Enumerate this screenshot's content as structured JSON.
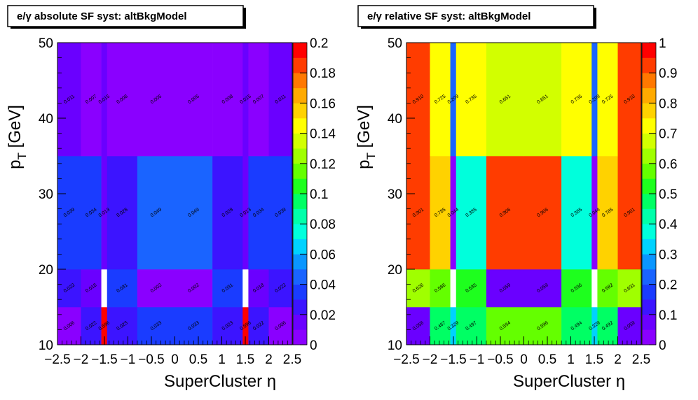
{
  "chart_data": [
    {
      "type": "heatmap",
      "title": "e/γ absolute SF syst: altBkgModel",
      "xlabel": "SuperCluster  η",
      "ylabel": "p_T [GeV]",
      "ylabel_main": "p",
      "ylabel_sub": "T",
      "ylabel_unit": " [GeV]",
      "xlim": [
        -2.5,
        2.5
      ],
      "ylim": [
        10,
        50
      ],
      "zlim": [
        0,
        0.2
      ],
      "x_edges": [
        -2.5,
        -2.0,
        -1.566,
        -1.444,
        -0.8,
        0.0,
        0.8,
        1.444,
        1.566,
        2.0,
        2.5
      ],
      "y_edges": [
        10,
        15,
        20,
        35,
        50
      ],
      "x_ticks": [
        "−2.5",
        "−2",
        "−1.5",
        "−1",
        "−0.5",
        "0",
        "0.5",
        "1",
        "1.5",
        "2",
        "2.5"
      ],
      "x_tick_values": [
        -2.5,
        -2,
        -1.5,
        -1,
        -0.5,
        0,
        0.5,
        1,
        1.5,
        2,
        2.5
      ],
      "y_ticks": [
        "10",
        "20",
        "30",
        "40",
        "50"
      ],
      "y_tick_values": [
        10,
        20,
        30,
        40,
        50
      ],
      "z_ticks": [
        "0",
        "0.02",
        "0.04",
        "0.06",
        "0.08",
        "0.1",
        "0.12",
        "0.14",
        "0.16",
        "0.18",
        "0.2"
      ],
      "values": [
        [
          0.006,
          0.022,
          0.596,
          0.023,
          0.033,
          0.033,
          0.023,
          0.596,
          0.022,
          0.006
        ],
        [
          0.022,
          0.018,
          null,
          0.031,
          0.002,
          0.002,
          0.031,
          null,
          0.018,
          0.022
        ],
        [
          0.039,
          0.034,
          0.013,
          0.028,
          0.049,
          0.049,
          0.028,
          0.013,
          0.034,
          0.039
        ],
        [
          0.011,
          0.007,
          0.015,
          0.008,
          0.005,
          0.005,
          0.008,
          0.015,
          0.007,
          0.011
        ]
      ],
      "labels": [
        [
          "0.006",
          "0.022",
          "0.596",
          "0.023",
          "0.033",
          "0.033",
          "0.023",
          "0.596",
          "0.022",
          "0.006"
        ],
        [
          "0.022",
          "0.018",
          "",
          "0.031",
          "0.002",
          "0.002",
          "0.031",
          "",
          "0.018",
          "0.022"
        ],
        [
          "0.039",
          "0.034",
          "0.013",
          "0.028",
          "0.049",
          "0.049",
          "0.028",
          "0.013",
          "0.034",
          "0.039"
        ],
        [
          "0.011",
          "0.007",
          "0.015",
          "0.008",
          "0.005",
          "0.005",
          "0.008",
          "0.015",
          "0.007",
          "0.011"
        ]
      ]
    },
    {
      "type": "heatmap",
      "title": "e/γ relative SF syst: altBkgModel",
      "xlabel": "SuperCluster  η",
      "ylabel": "p_T [GeV]",
      "ylabel_main": "p",
      "ylabel_sub": "T",
      "ylabel_unit": " [GeV]",
      "xlim": [
        -2.5,
        2.5
      ],
      "ylim": [
        10,
        50
      ],
      "zlim": [
        0,
        1
      ],
      "x_edges": [
        -2.5,
        -2.0,
        -1.566,
        -1.444,
        -0.8,
        0.0,
        0.8,
        1.444,
        1.566,
        2.0,
        2.5
      ],
      "y_edges": [
        10,
        15,
        20,
        35,
        50
      ],
      "x_ticks": [
        "−2.5",
        "−2",
        "−1.5",
        "−1",
        "−0.5",
        "0",
        "0.5",
        "1",
        "1.5",
        "2",
        "2.5"
      ],
      "x_tick_values": [
        -2.5,
        -2,
        -1.5,
        -1,
        -0.5,
        0,
        0.5,
        1,
        1.5,
        2,
        2.5
      ],
      "y_ticks": [
        "10",
        "20",
        "30",
        "40",
        "50"
      ],
      "y_tick_values": [
        10,
        20,
        30,
        40,
        50
      ],
      "z_ticks": [
        "0",
        "0.1",
        "0.2",
        "0.3",
        "0.4",
        "0.5",
        "0.6",
        "0.7",
        "0.8",
        "0.9",
        "1"
      ],
      "values": [
        [
          0.056,
          0.487,
          0.329,
          0.497,
          0.594,
          0.596,
          0.494,
          0.329,
          0.492,
          0.059
        ],
        [
          0.626,
          0.586,
          null,
          0.535,
          0.059,
          0.059,
          0.536,
          null,
          0.582,
          0.631
        ],
        [
          0.901,
          0.785,
          0.044,
          0.385,
          0.906,
          0.906,
          0.385,
          0.044,
          0.785,
          0.901
        ],
        [
          0.91,
          0.725,
          0.209,
          0.735,
          0.651,
          0.651,
          0.735,
          0.209,
          0.725,
          0.91
        ]
      ],
      "labels": [
        [
          "0.056",
          "0.487",
          "0.329",
          "0.497",
          "0.594",
          "0.596",
          "0.494",
          "0.329",
          "0.492",
          "0.059"
        ],
        [
          "0.626",
          "0.586",
          "",
          "0.535",
          "0.059",
          "0.059",
          "0.536",
          "",
          "0.582",
          "0.631"
        ],
        [
          "0.901",
          "0.785",
          "0.044",
          "0.385",
          "0.906",
          "0.906",
          "0.385",
          "0.044",
          "0.785",
          "0.901"
        ],
        [
          "0.910",
          "0.725",
          "0.209",
          "0.735",
          "0.651",
          "0.651",
          "0.735",
          "0.209",
          "0.725",
          "0.910"
        ]
      ]
    }
  ],
  "palette": [
    "#8a00ff",
    "#6a00ff",
    "#3c14ff",
    "#1a3cff",
    "#1a64ff",
    "#0a96ff",
    "#00d2ff",
    "#00ffdc",
    "#00ffaa",
    "#00ff64",
    "#1eff1e",
    "#64ff00",
    "#a0ff00",
    "#d2ff00",
    "#ffff00",
    "#ffd200",
    "#ffaa00",
    "#ff7800",
    "#ff3c00",
    "#ff0000"
  ]
}
